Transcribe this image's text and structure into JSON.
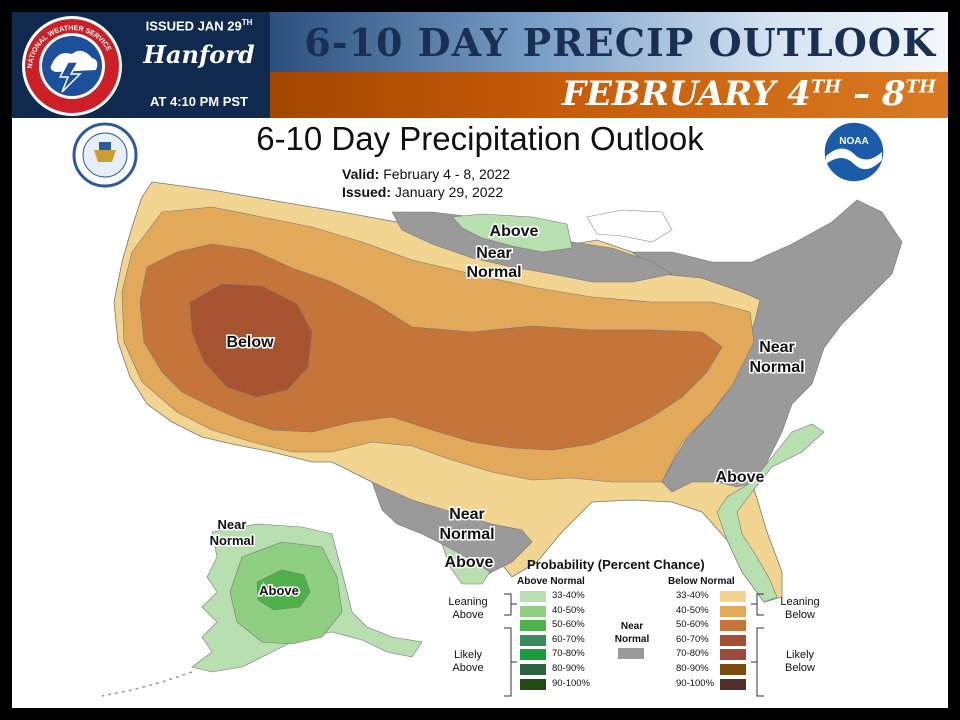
{
  "header": {
    "issued_prefix": "ISSUED JAN 29",
    "issued_sup": "TH",
    "office": "Hanford",
    "time": "AT 4:10 PM PST",
    "title": "6-10 DAY PRECIP OUTLOOK",
    "date_range_a": "FEBRUARY 4",
    "date_range_a_sup": "TH",
    "date_range_sep": " – 8",
    "date_range_b_sup": "TH",
    "logo_text": "NATIONAL WEATHER SERVICE"
  },
  "map": {
    "title": "6-10 Day Precipitation Outlook",
    "valid_label": "Valid:",
    "valid_value": "February 4 - 8, 2022",
    "issued_label": "Issued:",
    "issued_value": "January 29, 2022",
    "noaa_logo": "NOAA",
    "labels": {
      "above_north": "Above",
      "near_north_1": "Near",
      "near_north_2": "Normal",
      "below_west": "Below",
      "near_east_1": "Near",
      "near_east_2": "Normal",
      "above_southeast": "Above",
      "near_south_1": "Near",
      "near_south_2": "Normal",
      "above_texas": "Above",
      "ak_near_1": "Near",
      "ak_near_2": "Normal",
      "ak_above": "Above"
    }
  },
  "legend": {
    "title": "Probability (Percent Chance)",
    "above_header": "Above Normal",
    "below_header": "Below Normal",
    "near_label_1": "Near",
    "near_label_2": "Normal",
    "leaning_above_1": "Leaning",
    "leaning_above_2": "Above",
    "likely_above_1": "Likely",
    "likely_above_2": "Above",
    "leaning_below_1": "Leaning",
    "leaning_below_2": "Below",
    "likely_below_1": "Likely",
    "likely_below_2": "Below",
    "above_rows": [
      {
        "range": "33-40%",
        "color": "#b7dfb0"
      },
      {
        "range": "40-50%",
        "color": "#8fcf82"
      },
      {
        "range": "50-60%",
        "color": "#4fb14a"
      },
      {
        "range": "60-70%",
        "color": "#3a8a5f"
      },
      {
        "range": "70-80%",
        "color": "#1a9b3c"
      },
      {
        "range": "80-90%",
        "color": "#2e6440"
      },
      {
        "range": "90-100%",
        "color": "#234a12"
      }
    ],
    "below_rows": [
      {
        "range": "33-40%",
        "color": "#f3d592"
      },
      {
        "range": "40-50%",
        "color": "#e2a95a"
      },
      {
        "range": "50-60%",
        "color": "#c5743a"
      },
      {
        "range": "60-70%",
        "color": "#a35030"
      },
      {
        "range": "70-80%",
        "color": "#9a4a3f"
      },
      {
        "range": "80-90%",
        "color": "#7a4a0f"
      },
      {
        "range": "90-100%",
        "color": "#4f2f2a"
      }
    ],
    "near_color": "#9a9a9a"
  }
}
